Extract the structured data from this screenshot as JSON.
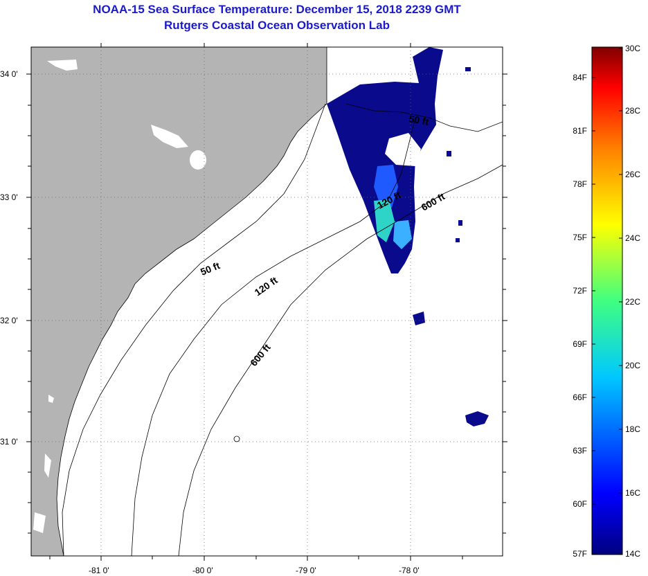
{
  "title": {
    "line1": "NOAA-15 Sea Surface Temperature:  December 15, 2018 2239 GMT",
    "line2": "Rutgers Coastal Ocean Observation Lab"
  },
  "map": {
    "lon_labels": [
      "-81 0'",
      "-80 0'",
      "-79 0'",
      "-78 0'"
    ],
    "lat_labels": [
      "34 0'",
      "33 0'",
      "32 0'",
      "31 0'"
    ],
    "contours": [
      "50 ft",
      "120 ft",
      "600 ft",
      "50 ft",
      "120 ft",
      "600 ft"
    ],
    "colors": {
      "land": "#b4b4b4",
      "sst_cold": "#0a0a8c",
      "sst_mid": "#1e5aff",
      "sst_warm": "#2ed4c8"
    }
  },
  "colorbar": {
    "fahrenheit_labels": [
      "84F",
      "81F",
      "78F",
      "75F",
      "72F",
      "69F",
      "66F",
      "63F",
      "60F",
      "57F"
    ],
    "celsius_labels": [
      "30C",
      "28C",
      "26C",
      "24C",
      "22C",
      "20C",
      "18C",
      "16C",
      "14C"
    ]
  }
}
